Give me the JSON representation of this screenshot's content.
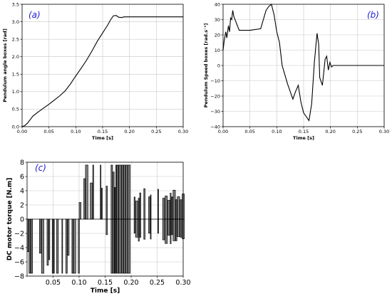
{
  "chart_data": [
    {
      "type": "line",
      "panel_label": "(a)",
      "xlabel": "Time [s]",
      "ylabel": "Pendulum angle boxes [rad]",
      "xlim": [
        0,
        0.3
      ],
      "ylim": [
        0,
        3.5
      ],
      "xticks": [
        "0.00",
        "0.05",
        "0.10",
        "0.15",
        "0.20",
        "0.25",
        "0.30"
      ],
      "yticks": [
        "0.0",
        "0.5",
        "1.0",
        "1.5",
        "2.0",
        "2.5",
        "3.0",
        "3.5"
      ],
      "grid": true,
      "x": [
        0,
        0.005,
        0.01,
        0.015,
        0.02,
        0.03,
        0.04,
        0.05,
        0.06,
        0.07,
        0.08,
        0.09,
        0.1,
        0.11,
        0.12,
        0.13,
        0.14,
        0.15,
        0.16,
        0.165,
        0.17,
        0.175,
        0.18,
        0.185,
        0.19,
        0.2,
        0.25,
        0.3
      ],
      "y": [
        0,
        0.03,
        0.1,
        0.2,
        0.3,
        0.42,
        0.53,
        0.64,
        0.76,
        0.88,
        1.02,
        1.22,
        1.45,
        1.67,
        1.9,
        2.16,
        2.44,
        2.68,
        2.92,
        3.06,
        3.17,
        3.18,
        3.13,
        3.12,
        3.14,
        3.14,
        3.14,
        3.14
      ]
    },
    {
      "type": "line",
      "panel_label": "(b)",
      "xlabel": "Time [s]",
      "ylabel": "Pendulum Speed boxes [rad.s⁻¹]",
      "xlim": [
        0,
        0.3
      ],
      "ylim": [
        -40,
        40
      ],
      "xticks": [
        "0.00",
        "0.05",
        "0.10",
        "0.15",
        "0.20",
        "0.25",
        "0.30"
      ],
      "yticks": [
        "−40",
        "−30",
        "−20",
        "−10",
        "0",
        "10",
        "20",
        "30",
        "40"
      ],
      "grid": true,
      "x": [
        0,
        0.002,
        0.005,
        0.007,
        0.01,
        0.012,
        0.014,
        0.016,
        0.018,
        0.02,
        0.03,
        0.05,
        0.07,
        0.075,
        0.08,
        0.085,
        0.09,
        0.095,
        0.1,
        0.105,
        0.11,
        0.12,
        0.13,
        0.135,
        0.14,
        0.145,
        0.15,
        0.16,
        0.165,
        0.17,
        0.175,
        0.178,
        0.18,
        0.185,
        0.19,
        0.193,
        0.196,
        0.199,
        0.202,
        0.205,
        0.21,
        0.25,
        0.3
      ],
      "y": [
        10,
        16,
        22,
        18,
        26,
        22,
        31,
        30,
        36,
        32,
        23,
        23,
        24,
        30,
        36,
        38.5,
        40,
        33,
        22,
        15,
        0,
        -12,
        -22,
        -17,
        -13,
        -24,
        -31,
        -36,
        -25,
        2,
        21,
        14,
        -8,
        -13,
        4,
        6,
        -3,
        2,
        -1,
        0,
        0,
        0,
        0
      ]
    },
    {
      "type": "bar",
      "panel_label": "(c)",
      "xlabel": "Time [s]",
      "ylabel": "DC motor torque [N.m]",
      "xlim": [
        0,
        0.3
      ],
      "ylim": [
        -8,
        8
      ],
      "xticks": [
        "0.05",
        "0.10",
        "0.15",
        "0.20",
        "0.25",
        "0.30"
      ],
      "yticks": [
        "−8",
        "−6",
        "−4",
        "−2",
        "0",
        "2",
        "4",
        "6",
        "8"
      ],
      "grid": true,
      "segments": [
        {
          "t0": 0.0,
          "t1": 0.099,
          "vmin": -7.6,
          "vmax": 0
        },
        {
          "t0": 0.1,
          "t1": 0.109,
          "vmin": 0,
          "vmax": 3.5
        },
        {
          "t0": 0.109,
          "t1": 0.145,
          "vmin": 0,
          "vmax": 7.6
        },
        {
          "t0": 0.145,
          "t1": 0.158,
          "vmin": -3.5,
          "vmax": 7.6
        },
        {
          "t0": 0.158,
          "t1": 0.197,
          "vmin": -7.6,
          "vmax": 7.6
        },
        {
          "t0": 0.197,
          "t1": 0.3,
          "vmin": -3.5,
          "vmax": 4.5
        }
      ]
    }
  ]
}
